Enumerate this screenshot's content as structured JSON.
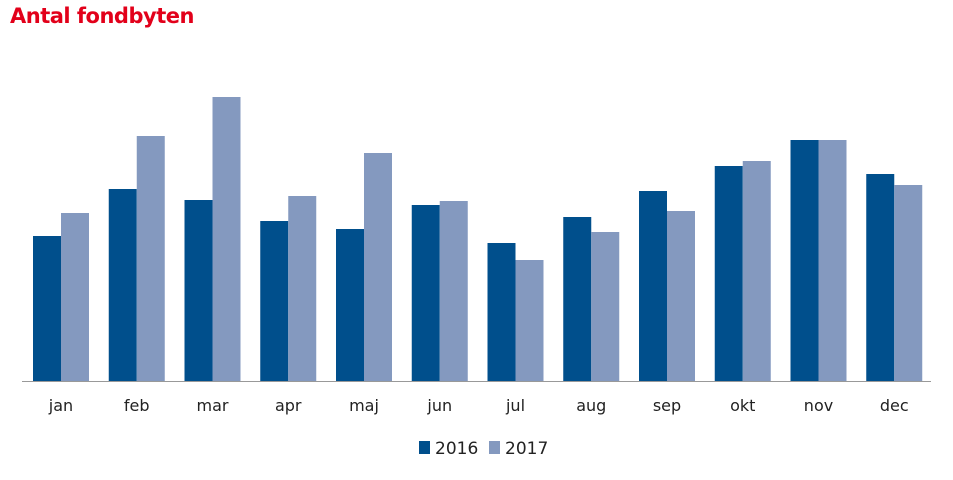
{
  "chart_data": {
    "type": "bar",
    "title": "Antal fondbyten",
    "xlabel": "",
    "ylabel": "",
    "categories": [
      "jan",
      "feb",
      "mar",
      "apr",
      "maj",
      "jun",
      "jul",
      "aug",
      "sep",
      "okt",
      "nov",
      "dec"
    ],
    "series": [
      {
        "name": "2016",
        "color": "#004f8c",
        "values": [
          145,
          192,
          181,
          160,
          152,
          176,
          138,
          164,
          190,
          215,
          241,
          207
        ]
      },
      {
        "name": "2017",
        "color": "#8499bf",
        "values": [
          168,
          245,
          284,
          185,
          228,
          180,
          121,
          149,
          170,
          220,
          241,
          196
        ]
      }
    ],
    "ylim": [
      0,
      300
    ],
    "y_axis_shown": false,
    "grid": false,
    "legend": "bottom-center"
  }
}
